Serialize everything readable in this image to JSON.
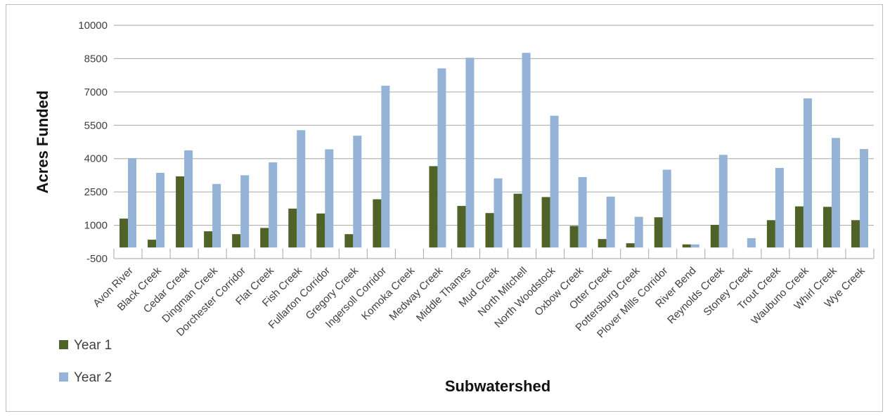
{
  "chart_data": {
    "type": "bar",
    "title": "",
    "xlabel": "Subwatershed",
    "ylabel": "Acres Funded",
    "ylim": [
      -500,
      10000
    ],
    "yticks": [
      -500,
      1000,
      2500,
      4000,
      5500,
      7000,
      8500,
      10000
    ],
    "grid": true,
    "legend_position": "bottom-left",
    "categories": [
      "Avon River",
      "Black Creek",
      "Cedar Creek",
      "Dingman Creek",
      "Dorchester Corridor",
      "Flat Creek",
      "Fish Creek",
      "Fullarton Corridor",
      "Gregory Creek",
      "Ingersoll Corridor",
      "Komoka Creek",
      "Medway Creek",
      "Middle Thames",
      "Mud Creek",
      "North Mitchell",
      "North Woodstock",
      "Oxbow Creek",
      "Otter Creek",
      "Pottersburg Creek",
      "Plover Mills Corridor",
      "River Bend",
      "Reynolds Creek",
      "Stoney Creek",
      "Trout Creek",
      "Waubuno Creek",
      "Whirl Creek",
      "Wye Creek"
    ],
    "series": [
      {
        "name": "Year 1",
        "color": "#4f6228",
        "values": [
          1300,
          350,
          3200,
          730,
          600,
          880,
          1750,
          1530,
          600,
          2170,
          0,
          3660,
          1870,
          1550,
          2420,
          2270,
          970,
          380,
          190,
          1360,
          140,
          1020,
          0,
          1230,
          1850,
          1830,
          1230
        ]
      },
      {
        "name": "Year 2",
        "color": "#95b3d7",
        "values": [
          4020,
          3360,
          4370,
          2860,
          3250,
          3830,
          5280,
          4420,
          5030,
          7280,
          0,
          8060,
          8540,
          3110,
          8760,
          5930,
          3170,
          2290,
          1380,
          3500,
          140,
          4170,
          420,
          3580,
          6710,
          4930,
          4430
        ]
      }
    ]
  }
}
